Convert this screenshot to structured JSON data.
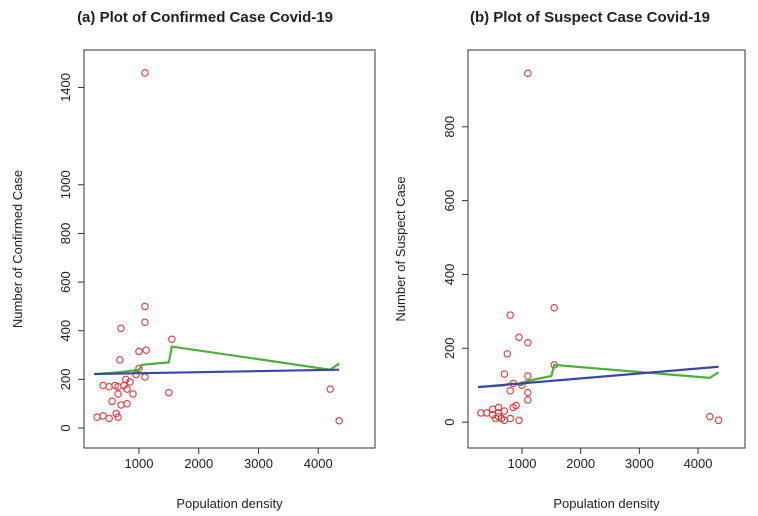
{
  "chart_data": [
    {
      "type": "scatter",
      "title": "(a) Plot of Confirmed Case Covid-19",
      "xlabel": "Population density",
      "ylabel": "Number of Confirmed Case",
      "xlim": [
        80,
        4950
      ],
      "ylim": [
        -82,
        1554
      ],
      "xticks": [
        1000,
        2000,
        3000,
        4000
      ],
      "yticks": [
        0,
        200,
        400,
        600,
        800,
        1000,
        1400
      ],
      "series": [
        {
          "type": "scatter",
          "color": "#e0363a",
          "x": [
            1100,
            1100,
            1100,
            1120,
            1000,
            700,
            680,
            1550,
            1500,
            1100,
            1000,
            950,
            850,
            780,
            800,
            900,
            750,
            650,
            600,
            500,
            400,
            650,
            550,
            700,
            620,
            650,
            500,
            300,
            400,
            800,
            4200,
            4350
          ],
          "values": [
            1460,
            500,
            435,
            320,
            315,
            410,
            280,
            365,
            145,
            210,
            245,
            220,
            190,
            200,
            160,
            140,
            175,
            170,
            175,
            170,
            175,
            140,
            110,
            95,
            60,
            45,
            40,
            45,
            50,
            100,
            160,
            30
          ]
        },
        {
          "type": "line",
          "color": "#4caf3a",
          "x": [
            250,
            700,
            1000,
            1050,
            1500,
            1550,
            4200,
            4350
          ],
          "values": [
            222,
            230,
            240,
            260,
            270,
            335,
            240,
            265
          ]
        },
        {
          "type": "line",
          "color": "#3a45a8",
          "x": [
            250,
            4350
          ],
          "values": [
            222,
            240
          ]
        }
      ]
    },
    {
      "type": "scatter",
      "title": "(b) Plot of Suspect Case Covid-19",
      "xlabel": "Population density",
      "ylabel": "Number of Suspect Case",
      "xlim": [
        80,
        4800
      ],
      "ylim": [
        -70,
        1008
      ],
      "xticks": [
        1000,
        2000,
        3000,
        4000
      ],
      "yticks": [
        0,
        200,
        400,
        600,
        800
      ],
      "series": [
        {
          "type": "scatter",
          "color": "#e0363a",
          "x": [
            1100,
            1550,
            800,
            950,
            1100,
            750,
            1550,
            700,
            1100,
            1000,
            850,
            800,
            1100,
            1100,
            900,
            850,
            700,
            600,
            500,
            400,
            300,
            600,
            550,
            650,
            700,
            800,
            950,
            4200,
            4350,
            500,
            600
          ],
          "values": [
            945,
            310,
            290,
            230,
            215,
            185,
            155,
            130,
            125,
            100,
            105,
            85,
            80,
            60,
            45,
            40,
            30,
            25,
            20,
            25,
            25,
            15,
            10,
            10,
            5,
            10,
            5,
            15,
            5,
            35,
            40
          ]
        },
        {
          "type": "line",
          "color": "#4caf3a",
          "x": [
            250,
            700,
            800,
            1000,
            1050,
            1500,
            1550,
            4200,
            4350
          ],
          "values": [
            95,
            100,
            105,
            100,
            110,
            125,
            155,
            120,
            135
          ]
        },
        {
          "type": "line",
          "color": "#3a45a8",
          "x": [
            250,
            4350
          ],
          "values": [
            95,
            150
          ]
        }
      ]
    }
  ]
}
